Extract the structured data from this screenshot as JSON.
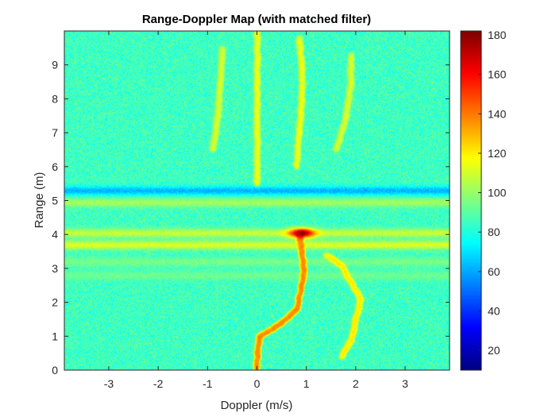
{
  "chart_data": {
    "type": "heatmap",
    "title": "Range-Doppler Map (with matched filter)",
    "xlabel": "Doppler (m/s)",
    "ylabel": "Range (m)",
    "xlim": [
      -3.9,
      3.9
    ],
    "ylim": [
      0,
      10
    ],
    "x_ticks": [
      -3,
      -2,
      -1,
      0,
      1,
      2,
      3
    ],
    "y_ticks": [
      0,
      1,
      2,
      3,
      4,
      5,
      6,
      7,
      8,
      9
    ],
    "colorbar": {
      "colormap": "jet",
      "range": [
        10,
        182
      ],
      "ticks": [
        20,
        40,
        60,
        80,
        100,
        120,
        140,
        160,
        180
      ]
    },
    "background_level": 85,
    "range_bands": [
      {
        "range_m": 5.3,
        "level": 62
      },
      {
        "range_m": 4.95,
        "level": 102
      },
      {
        "range_m": 4.05,
        "level": 108
      },
      {
        "range_m": 3.7,
        "level": 112
      },
      {
        "range_m": 3.2,
        "level": 95
      },
      {
        "range_m": 2.8,
        "level": 93
      }
    ],
    "peak": {
      "doppler_ms": 0.9,
      "range_m": 4.05,
      "level": 180
    },
    "traces": [
      {
        "points": [
          [
            0,
            0
          ],
          [
            0,
            0.5
          ],
          [
            0.05,
            1
          ],
          [
            0.5,
            1.4
          ],
          [
            0.8,
            1.8
          ],
          [
            0.9,
            2.5
          ],
          [
            0.95,
            3
          ],
          [
            0.9,
            3.5
          ],
          [
            0.85,
            4
          ]
        ],
        "level": 135
      },
      {
        "points": [
          [
            1.4,
            3.4
          ],
          [
            1.7,
            3.1
          ],
          [
            1.9,
            2.6
          ],
          [
            2.1,
            2.1
          ],
          [
            2.0,
            1.5
          ],
          [
            1.9,
            0.9
          ],
          [
            1.7,
            0.4
          ]
        ],
        "level": 118
      },
      {
        "points": [
          [
            -0.9,
            6.5
          ],
          [
            -0.8,
            7.5
          ],
          [
            -0.75,
            8.5
          ],
          [
            -0.7,
            9.5
          ]
        ],
        "level": 108
      },
      {
        "points": [
          [
            0.8,
            6.0
          ],
          [
            0.85,
            7.0
          ],
          [
            0.9,
            8.0
          ],
          [
            0.9,
            9.0
          ],
          [
            0.85,
            9.8
          ]
        ],
        "level": 112
      },
      {
        "points": [
          [
            1.6,
            6.5
          ],
          [
            1.8,
            7.5
          ],
          [
            1.9,
            8.5
          ],
          [
            1.9,
            9.3
          ]
        ],
        "level": 108
      },
      {
        "points": [
          [
            0,
            5.5
          ],
          [
            0,
            7.0
          ],
          [
            0,
            8.5
          ],
          [
            0,
            10
          ]
        ],
        "level": 112
      }
    ]
  }
}
